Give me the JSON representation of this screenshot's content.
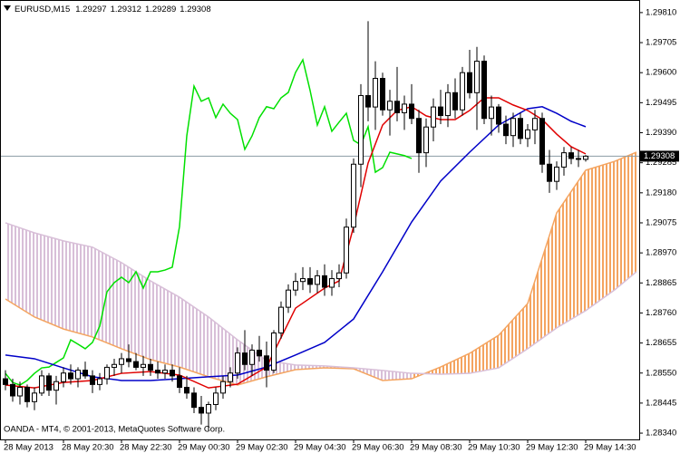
{
  "chart_data": {
    "type": "candlestick",
    "title": "EURUSD,M15",
    "footer": "OANDA - MT4, © 2001-2013, MetaQuotes Software Corp.",
    "open": [
      1.2853,
      1.2851,
      1.2847,
      1.285,
      1.2845,
      1.2848,
      1.2854,
      1.2849,
      1.2852,
      1.2855,
      1.2853,
      1.2856,
      1.2854,
      1.2851,
      1.2853,
      1.2857,
      1.2858,
      1.286,
      1.2859,
      1.2857,
      1.2858,
      1.2856,
      1.2855,
      1.2856,
      1.2854,
      1.285,
      1.2848,
      1.2843,
      1.2841,
      1.2844,
      1.2848,
      1.2852,
      1.2855,
      1.2862,
      1.2858,
      1.2863,
      1.2861,
      1.2856,
      1.2869,
      1.2878,
      1.2884,
      1.2887,
      1.2888,
      1.2886,
      1.2889,
      1.2885,
      1.2888,
      1.289,
      1.2906,
      1.2928,
      1.2952,
      1.2948,
      1.2958,
      1.2947,
      1.295,
      1.2946,
      1.2949,
      1.2944,
      1.2932,
      1.2941,
      1.2948,
      1.2945,
      1.2953,
      1.2947,
      1.296,
      1.2953,
      1.2964,
      1.2944,
      1.2948,
      1.2942,
      1.2938,
      1.2944,
      1.2937,
      1.294,
      1.2944,
      1.2928,
      1.2922,
      1.2927,
      1.2932,
      1.293,
      1.29297
    ],
    "high": [
      1.2856,
      1.2853,
      1.2852,
      1.2851,
      1.285,
      1.2856,
      1.2855,
      1.2854,
      1.2857,
      1.2858,
      1.2857,
      1.2859,
      1.2856,
      1.2855,
      1.2858,
      1.286,
      1.2862,
      1.2865,
      1.2862,
      1.2861,
      1.286,
      1.2859,
      1.2858,
      1.2858,
      1.2857,
      1.2854,
      1.285,
      1.2847,
      1.2845,
      1.285,
      1.2854,
      1.2857,
      1.2864,
      1.287,
      1.2865,
      1.2868,
      1.2866,
      1.287,
      1.288,
      1.2886,
      1.289,
      1.2892,
      1.2892,
      1.2891,
      1.2893,
      1.2891,
      1.2893,
      1.2909,
      1.293,
      1.2956,
      1.2978,
      1.2964,
      1.296,
      1.2954,
      1.2962,
      1.2952,
      1.2956,
      1.2947,
      1.2944,
      1.2951,
      1.2954,
      1.2956,
      1.2958,
      1.2962,
      1.2968,
      1.2969,
      1.2966,
      1.2952,
      1.2949,
      1.2945,
      1.2946,
      1.2946,
      1.2942,
      1.2947,
      1.2946,
      1.2933,
      1.2929,
      1.2934,
      1.2934,
      1.2933,
      1.29312
    ],
    "low": [
      1.2849,
      1.2845,
      1.2844,
      1.2843,
      1.2842,
      1.2847,
      1.2847,
      1.2844,
      1.285,
      1.2851,
      1.285,
      1.2853,
      1.2848,
      1.2849,
      1.2851,
      1.2854,
      1.2855,
      1.2857,
      1.2856,
      1.2854,
      1.2854,
      1.2853,
      1.2853,
      1.2852,
      1.2848,
      1.2846,
      1.2841,
      1.2837,
      1.2835,
      1.2842,
      1.2846,
      1.285,
      1.2853,
      1.2856,
      1.2854,
      1.2859,
      1.285,
      1.2855,
      1.2867,
      1.2876,
      1.2882,
      1.2884,
      1.2883,
      1.2883,
      1.2882,
      1.2882,
      1.2885,
      1.2888,
      1.2904,
      1.292,
      1.2943,
      1.294,
      1.2945,
      1.2938,
      1.2943,
      1.294,
      1.2942,
      1.2925,
      1.2927,
      1.2936,
      1.2942,
      1.2941,
      1.2944,
      1.2945,
      1.2951,
      1.294,
      1.2942,
      1.2938,
      1.2939,
      1.2935,
      1.2934,
      1.2935,
      1.2934,
      1.2935,
      1.2925,
      1.2918,
      1.2919,
      1.2924,
      1.2928,
      1.2927,
      1.29289
    ],
    "close": [
      1.2851,
      1.2847,
      1.285,
      1.2845,
      1.2848,
      1.2854,
      1.2849,
      1.2852,
      1.2855,
      1.2853,
      1.2856,
      1.2854,
      1.2851,
      1.2853,
      1.2857,
      1.2858,
      1.286,
      1.2859,
      1.2857,
      1.2858,
      1.2856,
      1.2855,
      1.2856,
      1.2854,
      1.285,
      1.2848,
      1.2843,
      1.2841,
      1.2844,
      1.2848,
      1.2852,
      1.2855,
      1.2862,
      1.2858,
      1.2863,
      1.2861,
      1.2856,
      1.2869,
      1.2878,
      1.2884,
      1.2887,
      1.2888,
      1.2886,
      1.2889,
      1.2885,
      1.2888,
      1.289,
      1.2906,
      1.2928,
      1.2952,
      1.2948,
      1.2958,
      1.2947,
      1.295,
      1.2946,
      1.2949,
      1.2944,
      1.2932,
      1.2941,
      1.2948,
      1.2945,
      1.2953,
      1.2947,
      1.296,
      1.2953,
      1.2964,
      1.2944,
      1.2948,
      1.2942,
      1.2938,
      1.2944,
      1.2937,
      1.294,
      1.2944,
      1.2928,
      1.2922,
      1.2927,
      1.2932,
      1.293,
      1.29297,
      1.29308
    ],
    "candle_colors": {
      "up": "#ffffff",
      "down": "#000000",
      "outline": "#000000"
    },
    "price_line_color": "#8c9ca4",
    "series": [
      {
        "color": "#00e000",
        "x": [
          0,
          1,
          2,
          3,
          4,
          5,
          6,
          7,
          8,
          9,
          10,
          11,
          12,
          13,
          14,
          15,
          16,
          17,
          18,
          19,
          20,
          21,
          22,
          23,
          24,
          25,
          26,
          27,
          28,
          29,
          30,
          31,
          32,
          33,
          34,
          35,
          36,
          37,
          38,
          39,
          40,
          41,
          42,
          43,
          44,
          45,
          46,
          47,
          48,
          49,
          50,
          51,
          52,
          53,
          54,
          55,
          56
        ],
        "values": [
          1.28549,
          1.28517,
          1.28508,
          1.28524,
          1.28549,
          1.28568,
          1.28571,
          1.28587,
          1.28603,
          1.28666,
          1.28651,
          1.28635,
          1.28657,
          1.28714,
          1.28834,
          1.28866,
          1.28885,
          1.28866,
          1.28904,
          1.28847,
          1.28904,
          1.28904,
          1.2891,
          1.2892,
          1.29062,
          1.29379,
          1.29553,
          1.295,
          1.29512,
          1.29443,
          1.2949,
          1.29458,
          1.29436,
          1.29332,
          1.29379,
          1.29443,
          1.29481,
          1.29474,
          1.29512,
          1.29531,
          1.29601,
          1.29645,
          1.29538,
          1.29417,
          1.29481,
          1.29395,
          1.29427,
          1.29458,
          1.29363,
          1.29348,
          1.29411,
          1.29252,
          1.29268,
          1.29322,
          1.29316,
          1.2931,
          1.293
        ]
      },
      {
        "color": "#0000c8",
        "x": [
          0,
          4,
          8,
          12,
          16,
          20,
          24,
          28,
          32,
          36,
          40,
          44,
          48,
          52,
          56,
          60,
          64,
          68,
          72,
          74,
          76,
          78,
          80
        ],
        "values": [
          1.28613,
          1.286,
          1.28568,
          1.28537,
          1.28524,
          1.28524,
          1.2853,
          1.28537,
          1.28543,
          1.28571,
          1.28613,
          1.28657,
          1.28739,
          1.28904,
          1.29078,
          1.29221,
          1.29322,
          1.29417,
          1.29474,
          1.29481,
          1.29458,
          1.2943,
          1.29411
        ]
      },
      {
        "color": "#e00000",
        "x": [
          0,
          4,
          8,
          12,
          16,
          20,
          24,
          28,
          32,
          36,
          40,
          44,
          46,
          48,
          50,
          52,
          54,
          56,
          58,
          60,
          62,
          64,
          66,
          68,
          70,
          72,
          74,
          76,
          78,
          80
        ],
        "values": [
          1.28508,
          1.28498,
          1.28517,
          1.28524,
          1.28549,
          1.28555,
          1.28543,
          1.28498,
          1.28511,
          1.28571,
          1.28777,
          1.28847,
          1.28872,
          1.29062,
          1.29284,
          1.29417,
          1.29468,
          1.29481,
          1.29449,
          1.29436,
          1.29436,
          1.29468,
          1.29512,
          1.29512,
          1.29487,
          1.29468,
          1.29436,
          1.29385,
          1.29341,
          1.29316
        ]
      }
    ],
    "cloud": {
      "x": [
        0,
        4,
        8,
        12,
        16,
        20,
        24,
        28,
        32,
        36,
        40,
        44,
        48,
        52,
        56,
        60,
        64,
        68,
        72,
        76,
        80,
        84,
        87
      ],
      "span_a": {
        "color": "#f4a460",
        "values": [
          1.28809,
          1.28746,
          1.28704,
          1.28676,
          1.28635,
          1.28597,
          1.28571,
          1.28537,
          1.28508,
          1.28537,
          1.28562,
          1.28568,
          1.28565,
          1.28524,
          1.2853,
          1.28571,
          1.28619,
          1.28682,
          1.28793,
          1.2911,
          1.29259,
          1.2929,
          1.29322
        ]
      },
      "span_b": {
        "color": "#d8bfd8",
        "values": [
          1.29075,
          1.2904,
          1.29012,
          1.2899,
          1.28936,
          1.28872,
          1.28815,
          1.28746,
          1.28666,
          1.28594,
          1.28578,
          1.28575,
          1.28568,
          1.28559,
          1.28549,
          1.28546,
          1.28549,
          1.28568,
          1.28635,
          1.28708,
          1.28768,
          1.28841,
          1.28904
        ]
      }
    },
    "xlim": [
      -0.75,
      87.375
    ],
    "xticks": [
      {
        "value": 0,
        "label": "28 May 2013"
      },
      {
        "value": 8,
        "label": "28 May 20:30"
      },
      {
        "value": 16,
        "label": "28 May 22:30"
      },
      {
        "value": 24,
        "label": "29 May 00:30"
      },
      {
        "value": 32,
        "label": "29 May 02:30"
      },
      {
        "value": 40,
        "label": "29 May 04:30"
      },
      {
        "value": 48,
        "label": "29 May 06:30"
      },
      {
        "value": 56,
        "label": "29 May 08:30"
      },
      {
        "value": 64,
        "label": "29 May 10:30"
      },
      {
        "value": 72,
        "label": "29 May 12:30"
      },
      {
        "value": 80,
        "label": "29 May 14:30"
      }
    ],
    "ylim": [
      1.28318,
      1.29854
    ],
    "yticks": [
      {
        "value": 1.2981,
        "label": "1.29810"
      },
      1.29705,
      {
        "value": 1.296,
        "label": "1.29600"
      },
      1.29495,
      {
        "value": 1.2939,
        "label": "1.29390"
      },
      1.29285,
      {
        "value": 1.2918,
        "label": "1.29180"
      },
      1.29075,
      {
        "value": 1.2897,
        "label": "1.28970"
      },
      1.28865,
      {
        "value": 1.2876,
        "label": "1.28760"
      },
      1.28655,
      {
        "value": 1.2855,
        "label": "1.28550"
      },
      1.28445,
      {
        "value": 1.2834,
        "label": "1.28340"
      }
    ]
  }
}
